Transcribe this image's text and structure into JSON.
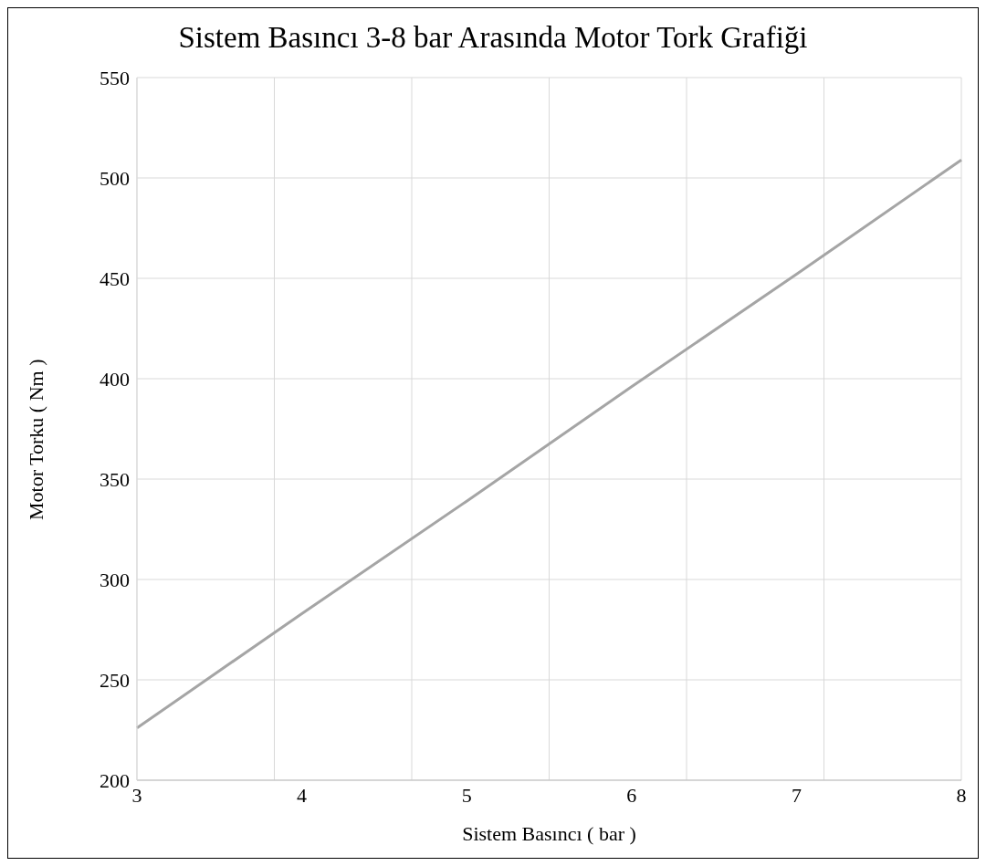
{
  "chart_data": {
    "type": "line",
    "title": "Sistem Basıncı 3-8 bar Arasında Motor Tork Grafiği",
    "xlabel": "Sistem Basıncı ( bar )",
    "ylabel": "Motor Torku ( Nm )",
    "categories": [
      "3",
      "4",
      "5",
      "6",
      "7",
      "8"
    ],
    "series": [
      {
        "color": "#a5a5a5",
        "values": [
          226,
          283,
          339,
          396,
          452,
          509
        ]
      }
    ],
    "ylim": [
      200,
      550
    ],
    "yticks": [
      200,
      250,
      300,
      350,
      400,
      450,
      500,
      550
    ],
    "grid": true,
    "legend": false,
    "marker": "none",
    "line_style": "solid"
  }
}
